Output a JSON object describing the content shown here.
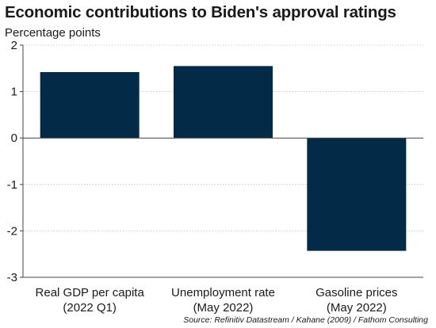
{
  "chart_data": {
    "type": "bar",
    "title": "Economic contributions to Biden's approval ratings",
    "subtitle": "Percentage points",
    "categories": [
      [
        "Real GDP per capita",
        "(2022 Q1)"
      ],
      [
        "Unemployment rate",
        "(May 2022)"
      ],
      [
        "Gasoline prices",
        "(May 2022)"
      ]
    ],
    "values": [
      1.42,
      1.55,
      -2.43
    ],
    "ylim": [
      -3,
      2
    ],
    "yticks": [
      2,
      1,
      0,
      -1,
      -2,
      -3
    ],
    "grid": true,
    "bar_color": "#032a47",
    "source": "Source: Refinitiv Datastream / Kahane (2009) / Fathom Consulting"
  }
}
